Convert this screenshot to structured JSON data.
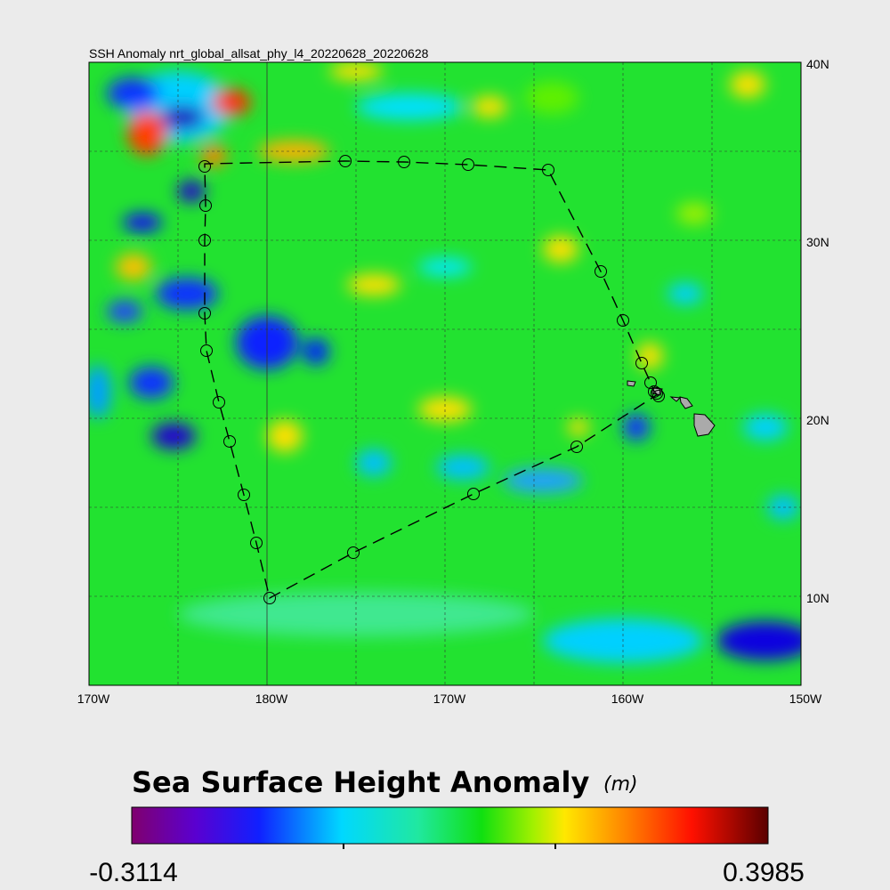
{
  "title": "SSH Anomaly nrt_global_allsat_phy_l4_20220628_20220628",
  "x_labels": [
    "170W",
    "180W",
    "170W",
    "160W",
    "150W"
  ],
  "y_labels": [
    "40N",
    "30N",
    "20N",
    "10N"
  ],
  "colorbar": {
    "title": "Sea Surface Height Anomaly",
    "unit": "(m)",
    "min_label": "-0.3114",
    "max_label": "0.3985"
  }
}
